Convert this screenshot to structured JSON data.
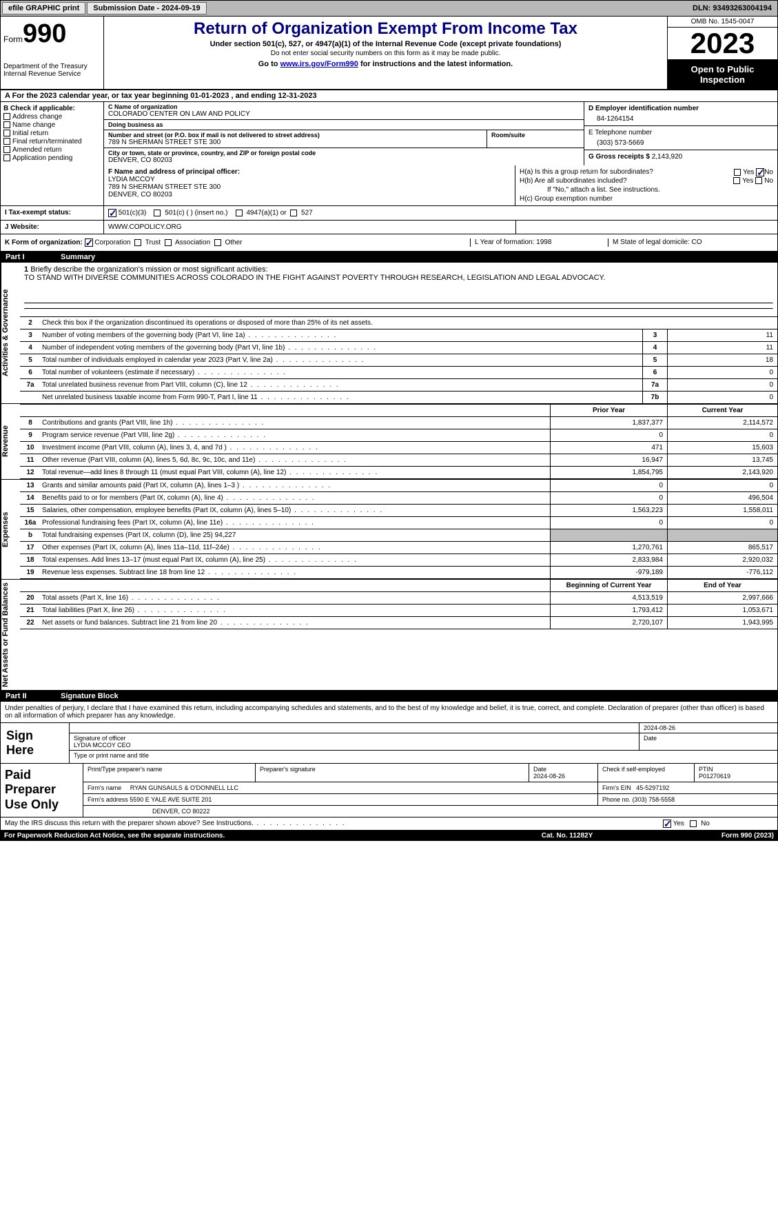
{
  "topbar": {
    "efile": "efile GRAPHIC print",
    "submission": "Submission Date - 2024-09-19",
    "dln": "DLN: 93493263004194"
  },
  "header": {
    "form_label": "Form",
    "form_number": "990",
    "title": "Return of Organization Exempt From Income Tax",
    "subtitle1": "Under section 501(c), 527, or 4947(a)(1) of the Internal Revenue Code (except private foundations)",
    "subtitle2": "Do not enter social security numbers on this form as it may be made public.",
    "subtitle3_prefix": "Go to ",
    "subtitle3_link": "www.irs.gov/Form990",
    "subtitle3_suffix": " for instructions and the latest information.",
    "dept": "Department of the Treasury\nInternal Revenue Service",
    "omb": "OMB No. 1545-0047",
    "year": "2023",
    "inspection": "Open to Public Inspection"
  },
  "row_a": "A For the 2023 calendar year, or tax year beginning 01-01-2023    , and ending 12-31-2023",
  "section_b": {
    "label": "B Check if applicable:",
    "opts": [
      "Address change",
      "Name change",
      "Initial return",
      "Final return/terminated",
      "Amended return",
      "Application pending"
    ]
  },
  "section_c": {
    "name_label": "C Name of organization",
    "name": "COLORADO CENTER ON LAW AND POLICY",
    "dba_label": "Doing business as",
    "dba": "",
    "street_label": "Number and street (or P.O. box if mail is not delivered to street address)",
    "street": "789 N SHERMAN STREET STE 300",
    "room_label": "Room/suite",
    "room": "",
    "city_label": "City or town, state or province, country, and ZIP or foreign postal code",
    "city": "DENVER, CO  80203"
  },
  "section_d": {
    "ein_label": "D Employer identification number",
    "ein": "84-1264154",
    "phone_label": "E Telephone number",
    "phone": "(303) 573-5669",
    "gross_label": "G Gross receipts $",
    "gross": "2,143,920"
  },
  "officer": {
    "label": "F  Name and address of principal officer:",
    "name": "LYDIA MCCOY",
    "street": "789 N SHERMAN STREET STE 300",
    "city": "DENVER, CO  80203"
  },
  "section_h": {
    "ha": "H(a)  Is this a group return for subordinates?",
    "hb": "H(b)  Are all subordinates included?",
    "hb_note": "If \"No,\" attach a list. See instructions.",
    "hc": "H(c)  Group exemption number"
  },
  "tax_status": {
    "label": "I    Tax-exempt status:",
    "opt1": "501(c)(3)",
    "opt2": "501(c) (  ) (insert no.)",
    "opt3": "4947(a)(1) or",
    "opt4": "527"
  },
  "website": {
    "label": "J    Website:",
    "value": "WWW.COPOLICY.ORG"
  },
  "form_org": {
    "label": "K Form of organization:",
    "corp": "Corporation",
    "trust": "Trust",
    "assoc": "Association",
    "other": "Other",
    "year_formation": "L Year of formation: 1998",
    "domicile": "M State of legal domicile: CO"
  },
  "parts": {
    "p1": "Part I",
    "p1_title": "Summary",
    "p2": "Part II",
    "p2_title": "Signature Block"
  },
  "side_labels": {
    "activities": "Activities & Governance",
    "revenue": "Revenue",
    "expenses": "Expenses",
    "netassets": "Net Assets or Fund Balances"
  },
  "summary": {
    "line1_label": "Briefly describe the organization's mission or most significant activities:",
    "line1_text": "TO STAND WITH DIVERSE COMMUNITIES ACROSS COLORADO IN THE FIGHT AGAINST POVERTY THROUGH RESEARCH, LEGISLATION AND LEGAL ADVOCACY.",
    "line2": "Check this box       if the organization discontinued its operations or disposed of more than 25% of its net assets.",
    "lines": [
      {
        "n": "3",
        "d": "Number of voting members of the governing body (Part VI, line 1a)",
        "box": "3",
        "v": "11"
      },
      {
        "n": "4",
        "d": "Number of independent voting members of the governing body (Part VI, line 1b)",
        "box": "4",
        "v": "11"
      },
      {
        "n": "5",
        "d": "Total number of individuals employed in calendar year 2023 (Part V, line 2a)",
        "box": "5",
        "v": "18"
      },
      {
        "n": "6",
        "d": "Total number of volunteers (estimate if necessary)",
        "box": "6",
        "v": "0"
      },
      {
        "n": "7a",
        "d": "Total unrelated business revenue from Part VIII, column (C), line 12",
        "box": "7a",
        "v": "0"
      },
      {
        "n": "",
        "d": "Net unrelated business taxable income from Form 990-T, Part I, line 11",
        "box": "7b",
        "v": "0"
      }
    ],
    "col_headers": {
      "prior": "Prior Year",
      "current": "Current Year",
      "boy": "Beginning of Current Year",
      "eoy": "End of Year"
    },
    "revenue": [
      {
        "n": "8",
        "d": "Contributions and grants (Part VIII, line 1h)",
        "p": "1,837,377",
        "c": "2,114,572"
      },
      {
        "n": "9",
        "d": "Program service revenue (Part VIII, line 2g)",
        "p": "0",
        "c": "0"
      },
      {
        "n": "10",
        "d": "Investment income (Part VIII, column (A), lines 3, 4, and 7d )",
        "p": "471",
        "c": "15,603"
      },
      {
        "n": "11",
        "d": "Other revenue (Part VIII, column (A), lines 5, 6d, 8c, 9c, 10c, and 11e)",
        "p": "16,947",
        "c": "13,745"
      },
      {
        "n": "12",
        "d": "Total revenue—add lines 8 through 11 (must equal Part VIII, column (A), line 12)",
        "p": "1,854,795",
        "c": "2,143,920"
      }
    ],
    "expenses": [
      {
        "n": "13",
        "d": "Grants and similar amounts paid (Part IX, column (A), lines 1–3 )",
        "p": "0",
        "c": "0"
      },
      {
        "n": "14",
        "d": "Benefits paid to or for members (Part IX, column (A), line 4)",
        "p": "0",
        "c": "496,504"
      },
      {
        "n": "15",
        "d": "Salaries, other compensation, employee benefits (Part IX, column (A), lines 5–10)",
        "p": "1,563,223",
        "c": "1,558,011"
      },
      {
        "n": "16a",
        "d": "Professional fundraising fees (Part IX, column (A), line 11e)",
        "p": "0",
        "c": "0"
      },
      {
        "n": "b",
        "d": "Total fundraising expenses (Part IX, column (D), line 25) 94,227",
        "p": "",
        "c": "",
        "gray": true
      },
      {
        "n": "17",
        "d": "Other expenses (Part IX, column (A), lines 11a–11d, 11f–24e)",
        "p": "1,270,761",
        "c": "865,517"
      },
      {
        "n": "18",
        "d": "Total expenses. Add lines 13–17 (must equal Part IX, column (A), line 25)",
        "p": "2,833,984",
        "c": "2,920,032"
      },
      {
        "n": "19",
        "d": "Revenue less expenses. Subtract line 18 from line 12",
        "p": "-979,189",
        "c": "-776,112"
      }
    ],
    "netassets": [
      {
        "n": "20",
        "d": "Total assets (Part X, line 16)",
        "p": "4,513,519",
        "c": "2,997,666"
      },
      {
        "n": "21",
        "d": "Total liabilities (Part X, line 26)",
        "p": "1,793,412",
        "c": "1,053,671"
      },
      {
        "n": "22",
        "d": "Net assets or fund balances. Subtract line 21 from line 20",
        "p": "2,720,107",
        "c": "1,943,995"
      }
    ]
  },
  "perjury": "Under penalties of perjury, I declare that I have examined this return, including accompanying schedules and statements, and to the best of my knowledge and belief, it is true, correct, and complete. Declaration of preparer (other than officer) is based on all information of which preparer has any knowledge.",
  "sign": {
    "label": "Sign Here",
    "sig_label": "Signature of officer",
    "date_label": "Date",
    "date": "2024-08-26",
    "name": "LYDIA MCCOY CEO",
    "name_label": "Type or print name and title"
  },
  "preparer": {
    "label": "Paid Preparer Use Only",
    "print_label": "Print/Type preparer's name",
    "sig_label": "Preparer's signature",
    "date_label": "Date",
    "date": "2024-08-26",
    "check_label": "Check       if self-employed",
    "ptin_label": "PTIN",
    "ptin": "P01270619",
    "firm_name_label": "Firm's name",
    "firm_name": "RYAN GUNSAULS & O'DONNELL LLC",
    "firm_ein_label": "Firm's EIN",
    "firm_ein": "45-5297192",
    "firm_addr_label": "Firm's address",
    "firm_addr1": "5590 E YALE AVE SUITE 201",
    "firm_addr2": "DENVER, CO  80222",
    "phone_label": "Phone no.",
    "phone": "(303) 758-5558"
  },
  "discuss": {
    "text": "May the IRS discuss this return with the preparer shown above? See Instructions.",
    "yes": "Yes",
    "no": "No"
  },
  "footer": {
    "left": "For Paperwork Reduction Act Notice, see the separate instructions.",
    "mid": "Cat. No. 11282Y",
    "right": "Form 990 (2023)"
  },
  "colors": {
    "header_blue": "#000080",
    "link_blue": "#0000cc",
    "topbar_gray": "#b8b8b8",
    "cell_gray": "#c0c0c0"
  }
}
